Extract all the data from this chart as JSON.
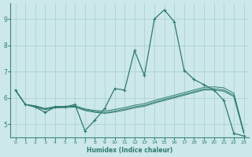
{
  "xlabel": "Humidex (Indice chaleur)",
  "bg_color": "#cce8e8",
  "grid_color": "#aacece",
  "line_color": "#2e7b6e",
  "xlim": [
    -0.5,
    23.5
  ],
  "ylim": [
    4.5,
    9.6
  ],
  "xticks": [
    0,
    1,
    2,
    3,
    4,
    5,
    6,
    7,
    8,
    9,
    10,
    11,
    12,
    13,
    14,
    15,
    16,
    17,
    18,
    19,
    20,
    21,
    22,
    23
  ],
  "yticks": [
    5,
    6,
    7,
    8,
    9
  ],
  "s1_x": [
    0,
    1,
    2,
    3,
    4,
    5,
    6,
    7,
    8,
    9,
    10,
    11,
    12,
    13,
    14,
    15,
    16,
    17,
    18,
    19,
    20,
    21,
    22,
    23
  ],
  "s1_y": [
    6.3,
    5.75,
    5.65,
    5.45,
    5.65,
    5.65,
    5.75,
    4.75,
    5.15,
    5.6,
    6.35,
    6.3,
    7.8,
    6.85,
    9.0,
    9.35,
    8.9,
    7.05,
    6.7,
    6.5,
    6.3,
    5.9,
    4.65,
    4.55
  ],
  "s2_x": [
    0,
    1,
    2,
    3,
    4,
    5,
    6,
    7,
    8,
    9,
    10,
    11,
    12,
    13,
    14,
    15,
    16,
    17,
    18,
    19,
    20,
    21,
    22,
    23
  ],
  "s2_y": [
    6.3,
    5.75,
    5.7,
    5.6,
    5.67,
    5.68,
    5.7,
    5.58,
    5.52,
    5.5,
    5.56,
    5.63,
    5.72,
    5.78,
    5.9,
    6.0,
    6.1,
    6.2,
    6.3,
    6.4,
    6.42,
    6.38,
    6.18,
    4.72
  ],
  "s3_x": [
    0,
    1,
    2,
    3,
    4,
    5,
    6,
    7,
    8,
    9,
    10,
    11,
    12,
    13,
    14,
    15,
    16,
    17,
    18,
    19,
    20,
    21,
    22,
    23
  ],
  "s3_y": [
    6.3,
    5.75,
    5.68,
    5.58,
    5.65,
    5.66,
    5.68,
    5.55,
    5.48,
    5.44,
    5.5,
    5.57,
    5.66,
    5.72,
    5.84,
    5.94,
    6.04,
    6.14,
    6.24,
    6.34,
    6.35,
    6.3,
    6.1,
    4.68
  ],
  "s4_x": [
    0,
    1,
    2,
    3,
    4,
    5,
    6,
    7,
    8,
    9,
    10,
    11,
    12,
    13,
    14,
    15,
    16,
    17,
    18,
    19,
    20,
    21,
    22,
    23
  ],
  "s4_y": [
    6.3,
    5.75,
    5.65,
    5.55,
    5.62,
    5.63,
    5.65,
    5.52,
    5.45,
    5.41,
    5.46,
    5.53,
    5.62,
    5.68,
    5.8,
    5.9,
    6.0,
    6.1,
    6.2,
    6.3,
    6.3,
    6.25,
    6.05,
    4.65
  ]
}
